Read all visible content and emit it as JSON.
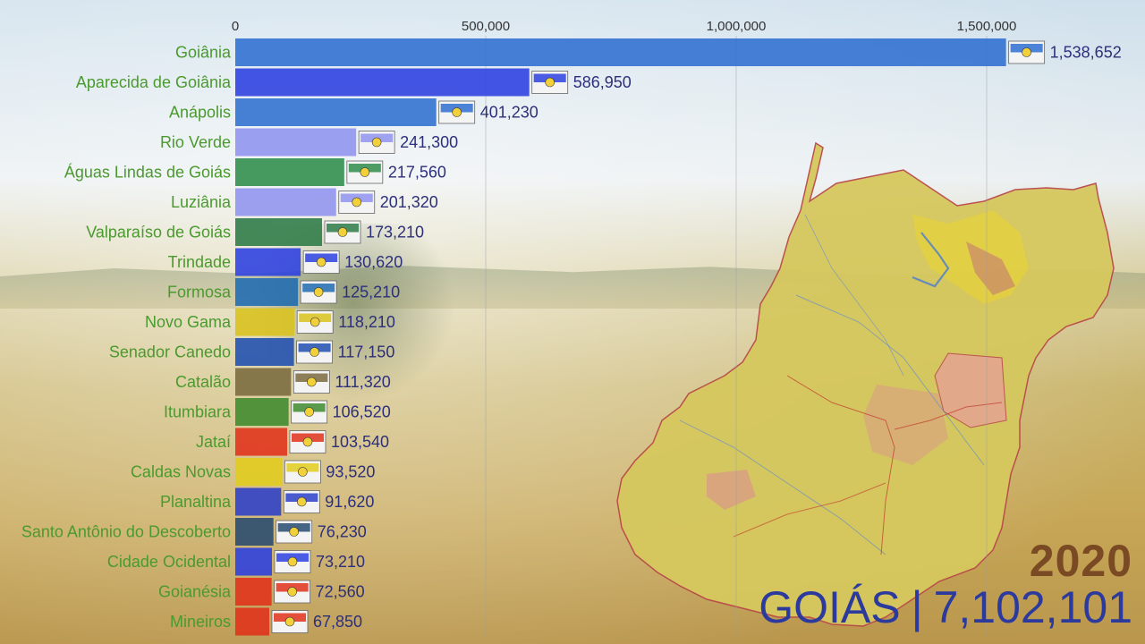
{
  "year": "2020",
  "state": "GOIÁS",
  "separator": "|",
  "total": "7,102,101",
  "colors": {
    "label_green": "#4a9a2e",
    "value_navy": "#2c2f7a",
    "year_brown": "#7a4a24",
    "summary_blue": "#2b3a9c"
  },
  "chart_data": {
    "type": "bar",
    "orientation": "horizontal",
    "xlim": [
      0,
      1600000
    ],
    "x_ticks": [
      0,
      500000,
      1000000,
      1500000
    ],
    "x_tick_labels": [
      "0",
      "500,000",
      "1,000,000",
      "1,500,000"
    ],
    "categories": [
      "Goiânia",
      "Aparecida de Goiânia",
      "Anápolis",
      "Rio Verde",
      "Águas Lindas de Goiás",
      "Luziânia",
      "Valparaíso de Goiás",
      "Trindade",
      "Formosa",
      "Novo Gama",
      "Senador Canedo",
      "Catalão",
      "Itumbiara",
      "Jataí",
      "Caldas Novas",
      "Planaltina",
      "Santo Antônio do Descoberto",
      "Cidade Ocidental",
      "Goianésia",
      "Mineiros"
    ],
    "values": [
      1538652,
      586950,
      401230,
      241300,
      217560,
      201320,
      173210,
      130620,
      125210,
      118210,
      117150,
      111320,
      106520,
      103540,
      93520,
      91620,
      76230,
      73210,
      72560,
      67850
    ],
    "value_labels": [
      "1,538,652",
      "586,950",
      "401,230",
      "241,300",
      "217,560",
      "201,320",
      "173,210",
      "130,620",
      "125,210",
      "118,210",
      "117,150",
      "111,320",
      "106,520",
      "103,540",
      "93,520",
      "91,620",
      "76,230",
      "73,210",
      "72,560",
      "67,850"
    ],
    "bar_colors": [
      "#2f6fd0",
      "#2b3fe0",
      "#2f6fd0",
      "#8f93ee",
      "#2e8c4a",
      "#8f93ee",
      "#2c7a45",
      "#2b3fe0",
      "#1f6bb0",
      "#d8c21c",
      "#1f4fb0",
      "#7a6a3e",
      "#3e8a2e",
      "#e0311a",
      "#e0cc1c",
      "#2b3fc8",
      "#274a6e",
      "#2b3fe0",
      "#e0311a",
      "#e0311a"
    ],
    "title": "",
    "xlabel": "",
    "ylabel": ""
  }
}
